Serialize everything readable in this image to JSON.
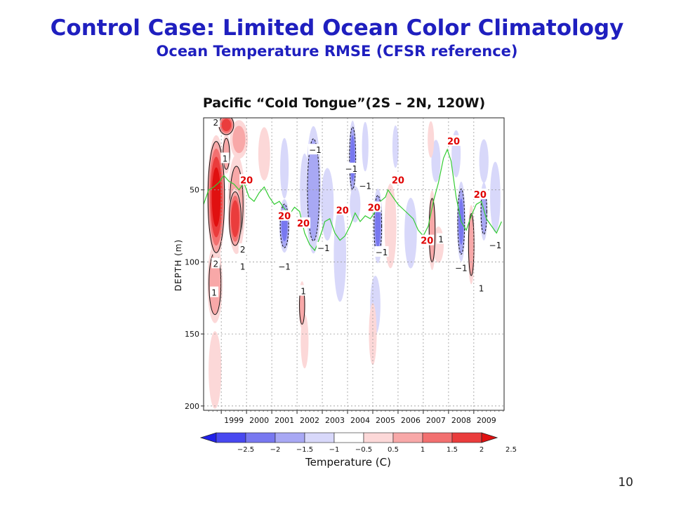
{
  "slide": {
    "title": "Control Case:  Limited Ocean Color Climatology",
    "subtitle": "Ocean Temperature RMSE (CFSR reference)",
    "number": "10"
  },
  "chart_data": {
    "type": "heatmap",
    "title": "Pacific “Cold Tongue”(2S – 2N, 120W)",
    "ylabel": "DEPTH  (m)",
    "xlabel": "",
    "xlim": [
      1998.3,
      2010.2
    ],
    "ylim": [
      0,
      203
    ],
    "y_inverted": true,
    "grid": true,
    "y_ticks": [
      {
        "value": 50,
        "label": "50"
      },
      {
        "value": 100,
        "label": "100"
      },
      {
        "value": 150,
        "label": "150"
      },
      {
        "value": 200,
        "label": "200"
      }
    ],
    "x_ticks": [
      {
        "value": 1999.5,
        "label": "1999"
      },
      {
        "value": 2000.5,
        "label": "2000"
      },
      {
        "value": 2001.5,
        "label": "2001"
      },
      {
        "value": 2002.5,
        "label": "2002"
      },
      {
        "value": 2003.5,
        "label": "2003"
      },
      {
        "value": 2004.5,
        "label": "2004"
      },
      {
        "value": 2005.5,
        "label": "2005"
      },
      {
        "value": 2006.5,
        "label": "2006"
      },
      {
        "value": 2007.5,
        "label": "2007"
      },
      {
        "value": 2008.5,
        "label": "2008"
      },
      {
        "value": 2009.5,
        "label": "2009"
      }
    ],
    "colorbar": {
      "label": "Temperature (C)",
      "ticks": [
        "-2.5",
        "-2",
        "-1.5",
        "-1",
        "-0.5",
        "0.5",
        "1",
        "1.5",
        "2",
        "2.5"
      ],
      "colors": [
        "#2020e8",
        "#4848f0",
        "#7878f0",
        "#a8a8f4",
        "#d8d8fa",
        "#ffffff",
        "#fcd8d8",
        "#f8a8a8",
        "#f27070",
        "#ea3c3c",
        "#e01010"
      ]
    },
    "field_blobs": [
      {
        "x": 1998.8,
        "y": 55,
        "rx": 0.38,
        "ry": 45,
        "v": 2.6
      },
      {
        "x": 1998.75,
        "y": 115,
        "rx": 0.33,
        "ry": 30,
        "v": 1.3
      },
      {
        "x": 1998.75,
        "y": 175,
        "rx": 0.3,
        "ry": 32,
        "v": 0.6
      },
      {
        "x": 1999.2,
        "y": 5,
        "rx": 0.35,
        "ry": 8,
        "v": 2.2
      },
      {
        "x": 1999.2,
        "y": 25,
        "rx": 0.18,
        "ry": 15,
        "v": 1.3
      },
      {
        "x": 1999.55,
        "y": 70,
        "rx": 0.28,
        "ry": 22,
        "v": 2.4
      },
      {
        "x": 1999.6,
        "y": 60,
        "rx": 0.38,
        "ry": 38,
        "v": 1.2
      },
      {
        "x": 1999.7,
        "y": 15,
        "rx": 0.4,
        "ry": 15,
        "v": 1.0
      },
      {
        "x": 2000.7,
        "y": 25,
        "rx": 0.28,
        "ry": 22,
        "v": 0.6
      },
      {
        "x": 2001.5,
        "y": 35,
        "rx": 0.2,
        "ry": 25,
        "v": -0.6
      },
      {
        "x": 2001.5,
        "y": 75,
        "rx": 0.22,
        "ry": 20,
        "v": -1.5
      },
      {
        "x": 2002.2,
        "y": 130,
        "rx": 0.14,
        "ry": 18,
        "v": 1.4
      },
      {
        "x": 2002.3,
        "y": 155,
        "rx": 0.18,
        "ry": 22,
        "v": 0.7
      },
      {
        "x": 2002.3,
        "y": 50,
        "rx": 0.22,
        "ry": 30,
        "v": -0.6
      },
      {
        "x": 2002.65,
        "y": 50,
        "rx": 0.32,
        "ry": 48,
        "v": -1.4
      },
      {
        "x": 2002.7,
        "y": 25,
        "rx": 0.2,
        "ry": 15,
        "v": -0.9
      },
      {
        "x": 2003.2,
        "y": 60,
        "rx": 0.3,
        "ry": 30,
        "v": -0.6
      },
      {
        "x": 2003.7,
        "y": 95,
        "rx": 0.3,
        "ry": 40,
        "v": -0.5
      },
      {
        "x": 2004.2,
        "y": 28,
        "rx": 0.16,
        "ry": 28,
        "v": -1.6
      },
      {
        "x": 2004.3,
        "y": 60,
        "rx": 0.25,
        "ry": 15,
        "v": -0.6
      },
      {
        "x": 2004.7,
        "y": 20,
        "rx": 0.15,
        "ry": 20,
        "v": -0.7
      },
      {
        "x": 2005.2,
        "y": 75,
        "rx": 0.2,
        "ry": 28,
        "v": -1.5
      },
      {
        "x": 2005.1,
        "y": 130,
        "rx": 0.25,
        "ry": 25,
        "v": -0.5
      },
      {
        "x": 2005.0,
        "y": 150,
        "rx": 0.18,
        "ry": 25,
        "v": 0.7
      },
      {
        "x": 2005.7,
        "y": 75,
        "rx": 0.28,
        "ry": 35,
        "v": 0.6
      },
      {
        "x": 2005.9,
        "y": 20,
        "rx": 0.15,
        "ry": 18,
        "v": -0.5
      },
      {
        "x": 2006.5,
        "y": 80,
        "rx": 0.3,
        "ry": 30,
        "v": -0.5
      },
      {
        "x": 2007.3,
        "y": 15,
        "rx": 0.15,
        "ry": 15,
        "v": 0.6
      },
      {
        "x": 2007.35,
        "y": 78,
        "rx": 0.16,
        "ry": 30,
        "v": 1.4
      },
      {
        "x": 2007.6,
        "y": 88,
        "rx": 0.25,
        "ry": 15,
        "v": 0.6
      },
      {
        "x": 2007.5,
        "y": 30,
        "rx": 0.22,
        "ry": 18,
        "v": -0.5
      },
      {
        "x": 2008.5,
        "y": 72,
        "rx": 0.18,
        "ry": 30,
        "v": -1.5
      },
      {
        "x": 2008.3,
        "y": 25,
        "rx": 0.22,
        "ry": 20,
        "v": -0.5
      },
      {
        "x": 2008.9,
        "y": 88,
        "rx": 0.15,
        "ry": 30,
        "v": 1.3
      },
      {
        "x": 2009.4,
        "y": 65,
        "rx": 0.16,
        "ry": 22,
        "v": -1.3
      },
      {
        "x": 2009.4,
        "y": 30,
        "rx": 0.22,
        "ry": 18,
        "v": -0.6
      },
      {
        "x": 2009.85,
        "y": 55,
        "rx": 0.25,
        "ry": 30,
        "v": -0.5
      }
    ],
    "isotherm_20C": [
      [
        1998.3,
        60
      ],
      [
        1998.5,
        50
      ],
      [
        1998.7,
        48
      ],
      [
        1998.9,
        45
      ],
      [
        1999.1,
        40
      ],
      [
        1999.3,
        44
      ],
      [
        1999.5,
        46
      ],
      [
        1999.7,
        50
      ],
      [
        1999.9,
        45
      ],
      [
        2000.1,
        55
      ],
      [
        2000.3,
        58
      ],
      [
        2000.5,
        52
      ],
      [
        2000.7,
        48
      ],
      [
        2000.9,
        55
      ],
      [
        2001.1,
        60
      ],
      [
        2001.3,
        58
      ],
      [
        2001.5,
        63
      ],
      [
        2001.7,
        67
      ],
      [
        2001.9,
        62
      ],
      [
        2002.1,
        65
      ],
      [
        2002.3,
        80
      ],
      [
        2002.5,
        88
      ],
      [
        2002.7,
        92
      ],
      [
        2002.8,
        88
      ],
      [
        2003.0,
        78
      ],
      [
        2003.1,
        72
      ],
      [
        2003.3,
        70
      ],
      [
        2003.5,
        80
      ],
      [
        2003.7,
        85
      ],
      [
        2003.9,
        82
      ],
      [
        2004.1,
        75
      ],
      [
        2004.3,
        66
      ],
      [
        2004.5,
        72
      ],
      [
        2004.7,
        68
      ],
      [
        2004.9,
        70
      ],
      [
        2005.1,
        65
      ],
      [
        2005.3,
        58
      ],
      [
        2005.5,
        55
      ],
      [
        2005.6,
        50
      ],
      [
        2005.8,
        55
      ],
      [
        2006.0,
        60
      ],
      [
        2006.3,
        65
      ],
      [
        2006.6,
        70
      ],
      [
        2006.8,
        78
      ],
      [
        2007.0,
        82
      ],
      [
        2007.2,
        75
      ],
      [
        2007.4,
        58
      ],
      [
        2007.6,
        45
      ],
      [
        2007.8,
        28
      ],
      [
        2007.95,
        22
      ],
      [
        2008.1,
        30
      ],
      [
        2008.3,
        55
      ],
      [
        2008.5,
        72
      ],
      [
        2008.7,
        78
      ],
      [
        2008.9,
        68
      ],
      [
        2009.1,
        60
      ],
      [
        2009.3,
        58
      ],
      [
        2009.5,
        70
      ],
      [
        2009.7,
        75
      ],
      [
        2009.9,
        80
      ],
      [
        2010.1,
        72
      ]
    ],
    "contour_labels": [
      {
        "x": 1998.78,
        "y": 3,
        "text": "2",
        "color": "black"
      },
      {
        "x": 1999.15,
        "y": 28,
        "text": "1",
        "color": "black"
      },
      {
        "x": 1999.85,
        "y": 91,
        "text": "2",
        "color": "black"
      },
      {
        "x": 1999.85,
        "y": 103,
        "text": "1",
        "color": "black"
      },
      {
        "x": 1998.78,
        "y": 101,
        "text": "2",
        "color": "black"
      },
      {
        "x": 1998.72,
        "y": 121,
        "text": "1",
        "color": "black"
      },
      {
        "x": 2001.5,
        "y": 103,
        "text": "-1",
        "color": "black"
      },
      {
        "x": 2002.25,
        "y": 120,
        "text": "1",
        "color": "black"
      },
      {
        "x": 2002.72,
        "y": 22,
        "text": "-1",
        "color": "black"
      },
      {
        "x": 2003.05,
        "y": 90,
        "text": "-1",
        "color": "black"
      },
      {
        "x": 2004.15,
        "y": 35,
        "text": "-1",
        "color": "black"
      },
      {
        "x": 2004.7,
        "y": 47,
        "text": "-1",
        "color": "black"
      },
      {
        "x": 2005.35,
        "y": 93,
        "text": "-1",
        "color": "black"
      },
      {
        "x": 2007.7,
        "y": 84,
        "text": "1",
        "color": "black"
      },
      {
        "x": 2008.5,
        "y": 104,
        "text": "-1",
        "color": "black"
      },
      {
        "x": 2009.3,
        "y": 118,
        "text": "1",
        "color": "black"
      },
      {
        "x": 2009.85,
        "y": 88,
        "text": "-1",
        "color": "black"
      },
      {
        "x": 2000.0,
        "y": 43,
        "text": "20",
        "color": "red"
      },
      {
        "x": 2001.5,
        "y": 68,
        "text": "20",
        "color": "red"
      },
      {
        "x": 2002.25,
        "y": 73,
        "text": "20",
        "color": "red"
      },
      {
        "x": 2003.8,
        "y": 64,
        "text": "20",
        "color": "red"
      },
      {
        "x": 2005.05,
        "y": 62,
        "text": "20",
        "color": "red"
      },
      {
        "x": 2006.0,
        "y": 43,
        "text": "20",
        "color": "red"
      },
      {
        "x": 2007.15,
        "y": 85,
        "text": "20",
        "color": "red"
      },
      {
        "x": 2008.2,
        "y": 16,
        "text": "20",
        "color": "red"
      },
      {
        "x": 2009.25,
        "y": 53,
        "text": "20",
        "color": "red"
      }
    ]
  }
}
